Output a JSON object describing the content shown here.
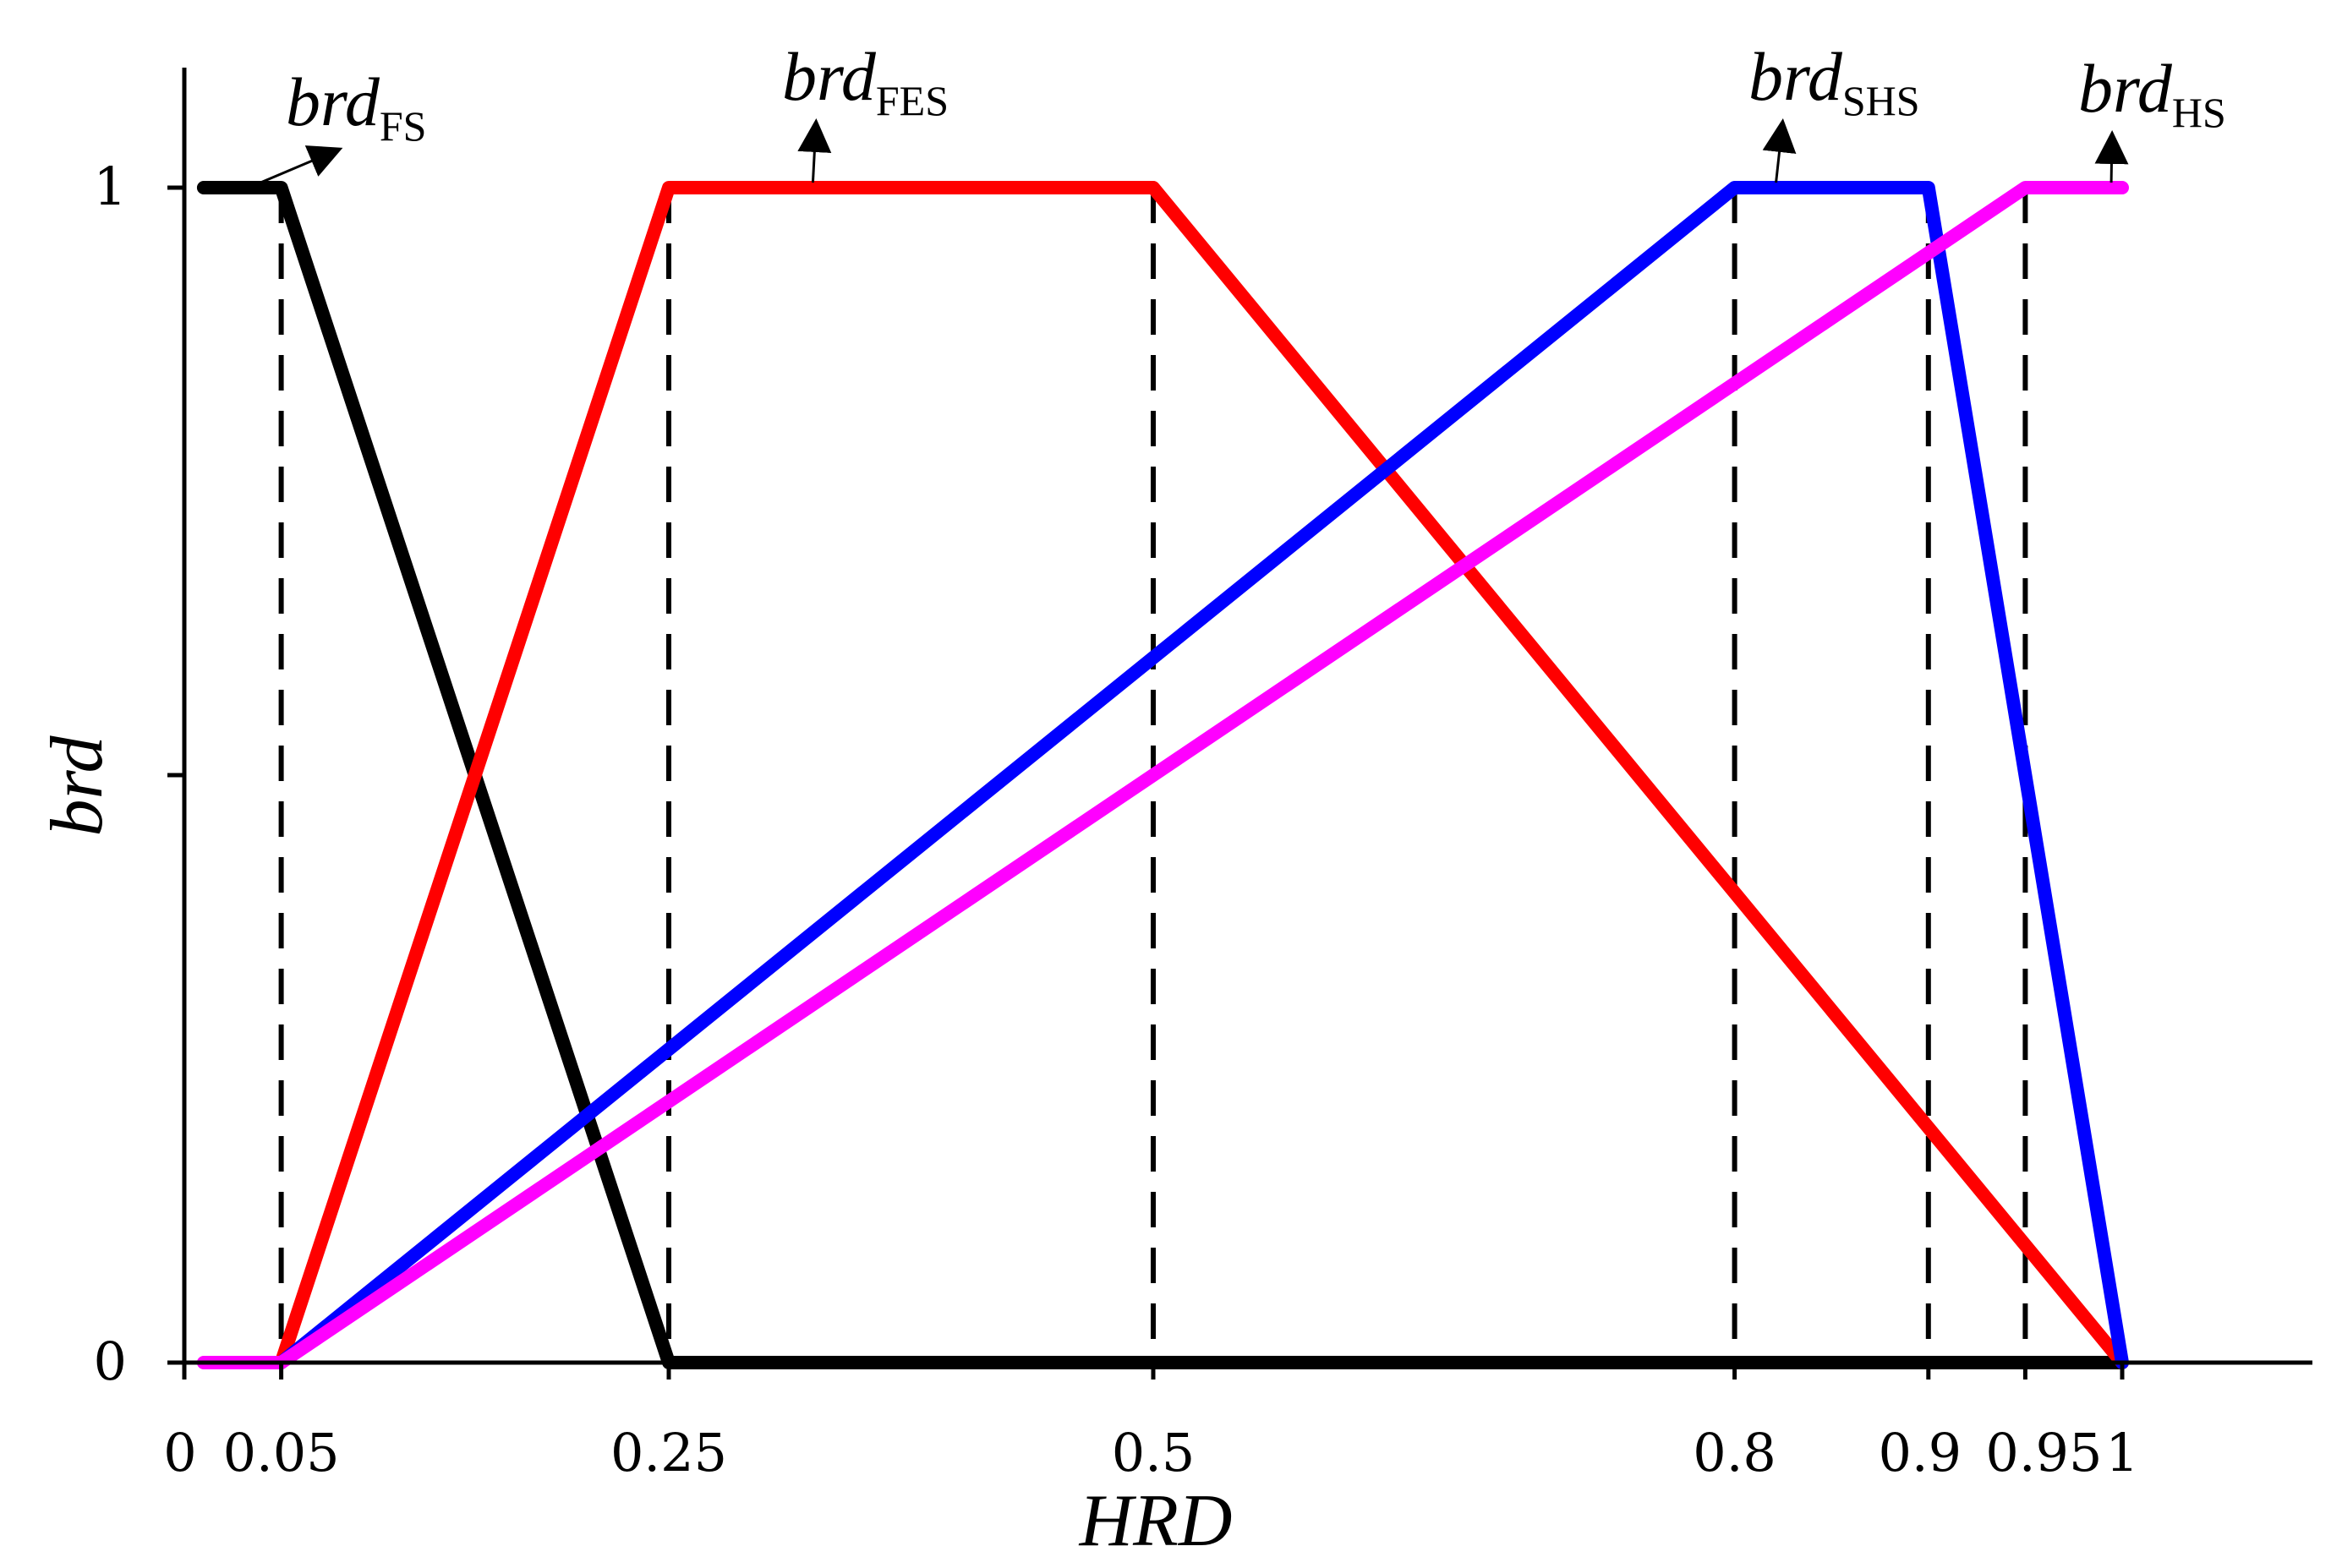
{
  "chart_data": {
    "type": "line",
    "title": "",
    "xlabel": "HRD",
    "ylabel": "brd",
    "xlim": [
      0,
      1.1
    ],
    "ylim": [
      0,
      1.1
    ],
    "grid": false,
    "x_ticks": [
      0,
      0.05,
      0.25,
      0.5,
      0.8,
      0.9,
      0.95,
      1
    ],
    "x_tick_labels": [
      "0",
      "0.05",
      "0.25",
      "0.5",
      "0.8",
      "0.9",
      "0.95",
      "1"
    ],
    "y_ticks": [
      0,
      0.5,
      1
    ],
    "y_tick_labels": [
      "0",
      "",
      "1"
    ],
    "reference_lines_x": [
      0.05,
      0.25,
      0.5,
      0.8,
      0.9,
      0.95
    ],
    "series": [
      {
        "name": "brd",
        "subscript": "FS",
        "color": "#000000",
        "x": [
          0.01,
          0.05,
          0.25,
          1.0
        ],
        "y": [
          1,
          1,
          0,
          0
        ],
        "label_points_to": [
          0.035,
          1.0
        ]
      },
      {
        "name": "brd",
        "subscript": "FES",
        "color": "#ff0000",
        "x": [
          0.05,
          0.25,
          0.5,
          1.0
        ],
        "y": [
          0,
          1,
          1,
          0
        ],
        "label_points_to": [
          0.32,
          1.0
        ]
      },
      {
        "name": "brd",
        "subscript": "SHS",
        "color": "#0000ff",
        "x": [
          0.05,
          0.8,
          0.9,
          1.0
        ],
        "y": [
          0,
          1,
          1,
          0
        ],
        "label_points_to": [
          0.817,
          1.0
        ]
      },
      {
        "name": "brd",
        "subscript": "HS",
        "color": "#ff00ff",
        "x": [
          0.01,
          0.05,
          0.95,
          1.0
        ],
        "y": [
          0,
          0,
          1,
          1
        ],
        "label_points_to": [
          0.99,
          1.0
        ]
      }
    ]
  }
}
